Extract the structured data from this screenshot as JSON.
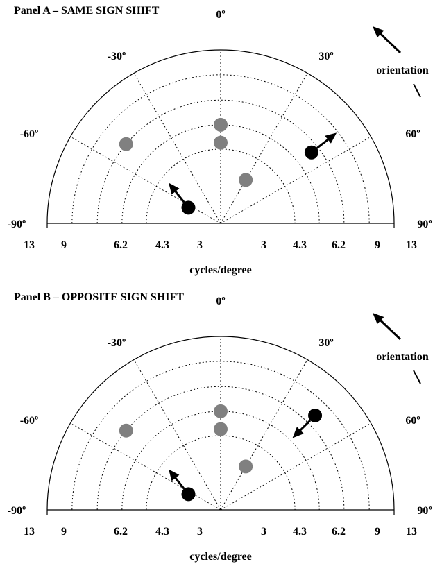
{
  "chart_data": [
    {
      "type": "scatter",
      "title": "Panel A – SAME SIGN SHIFT",
      "xlabel": "cycles/degree",
      "coordinate_system": "polar half-disc",
      "radial_tick_labels_left": [
        "13",
        "9",
        "6.2",
        "4.3",
        "3"
      ],
      "radial_tick_labels_right": [
        "3",
        "4.3",
        "6.2",
        "9",
        "13"
      ],
      "angle_labels": [
        "-90º",
        "-60º",
        "-30º",
        "0º",
        "30º",
        "60º",
        "90º"
      ],
      "legend_label": "orientation",
      "angle_gridlines_deg": [
        -60,
        -30,
        0,
        30,
        60
      ],
      "radial_gridlines_cpd": [
        3,
        4.3,
        6.2,
        9
      ],
      "series": [
        {
          "color": "#808080",
          "points": [
            {
              "angle_deg": -50,
              "sf_cpd": 6.2
            },
            {
              "angle_deg": 0,
              "sf_cpd": 4.3
            },
            {
              "angle_deg": 0,
              "sf_cpd": 3.3
            },
            {
              "angle_deg": 30,
              "sf_cpd": 2.1
            }
          ]
        },
        {
          "color": "#000000",
          "points": [
            {
              "angle_deg": 52,
              "sf_cpd": 5.5,
              "arrow": "outward"
            },
            {
              "angle_deg": -64,
              "sf_cpd": 1.7,
              "arrow": "up-left"
            }
          ]
        }
      ]
    },
    {
      "type": "scatter",
      "title": "Panel B – OPPOSITE SIGN SHIFT",
      "xlabel": "cycles/degree",
      "coordinate_system": "polar half-disc",
      "radial_tick_labels_left": [
        "13",
        "9",
        "6.2",
        "4.3",
        "3"
      ],
      "radial_tick_labels_right": [
        "3",
        "4.3",
        "6.2",
        "9",
        "13"
      ],
      "angle_labels": [
        "-90º",
        "-60º",
        "-30º",
        "0º",
        "30º",
        "60º",
        "90º"
      ],
      "legend_label": "orientation",
      "angle_gridlines_deg": [
        -60,
        -30,
        0,
        30,
        60
      ],
      "radial_gridlines_cpd": [
        3,
        4.3,
        6.2,
        9
      ],
      "series": [
        {
          "color": "#808080",
          "points": [
            {
              "angle_deg": -50,
              "sf_cpd": 6.2
            },
            {
              "angle_deg": 0,
              "sf_cpd": 4.3
            },
            {
              "angle_deg": 0,
              "sf_cpd": 3.3
            },
            {
              "angle_deg": 30,
              "sf_cpd": 2.1
            }
          ]
        },
        {
          "color": "#000000",
          "points": [
            {
              "angle_deg": 45,
              "sf_cpd": 7.2,
              "arrow": "inward"
            },
            {
              "angle_deg": -64,
              "sf_cpd": 1.7,
              "arrow": "up-left"
            }
          ]
        }
      ]
    }
  ]
}
